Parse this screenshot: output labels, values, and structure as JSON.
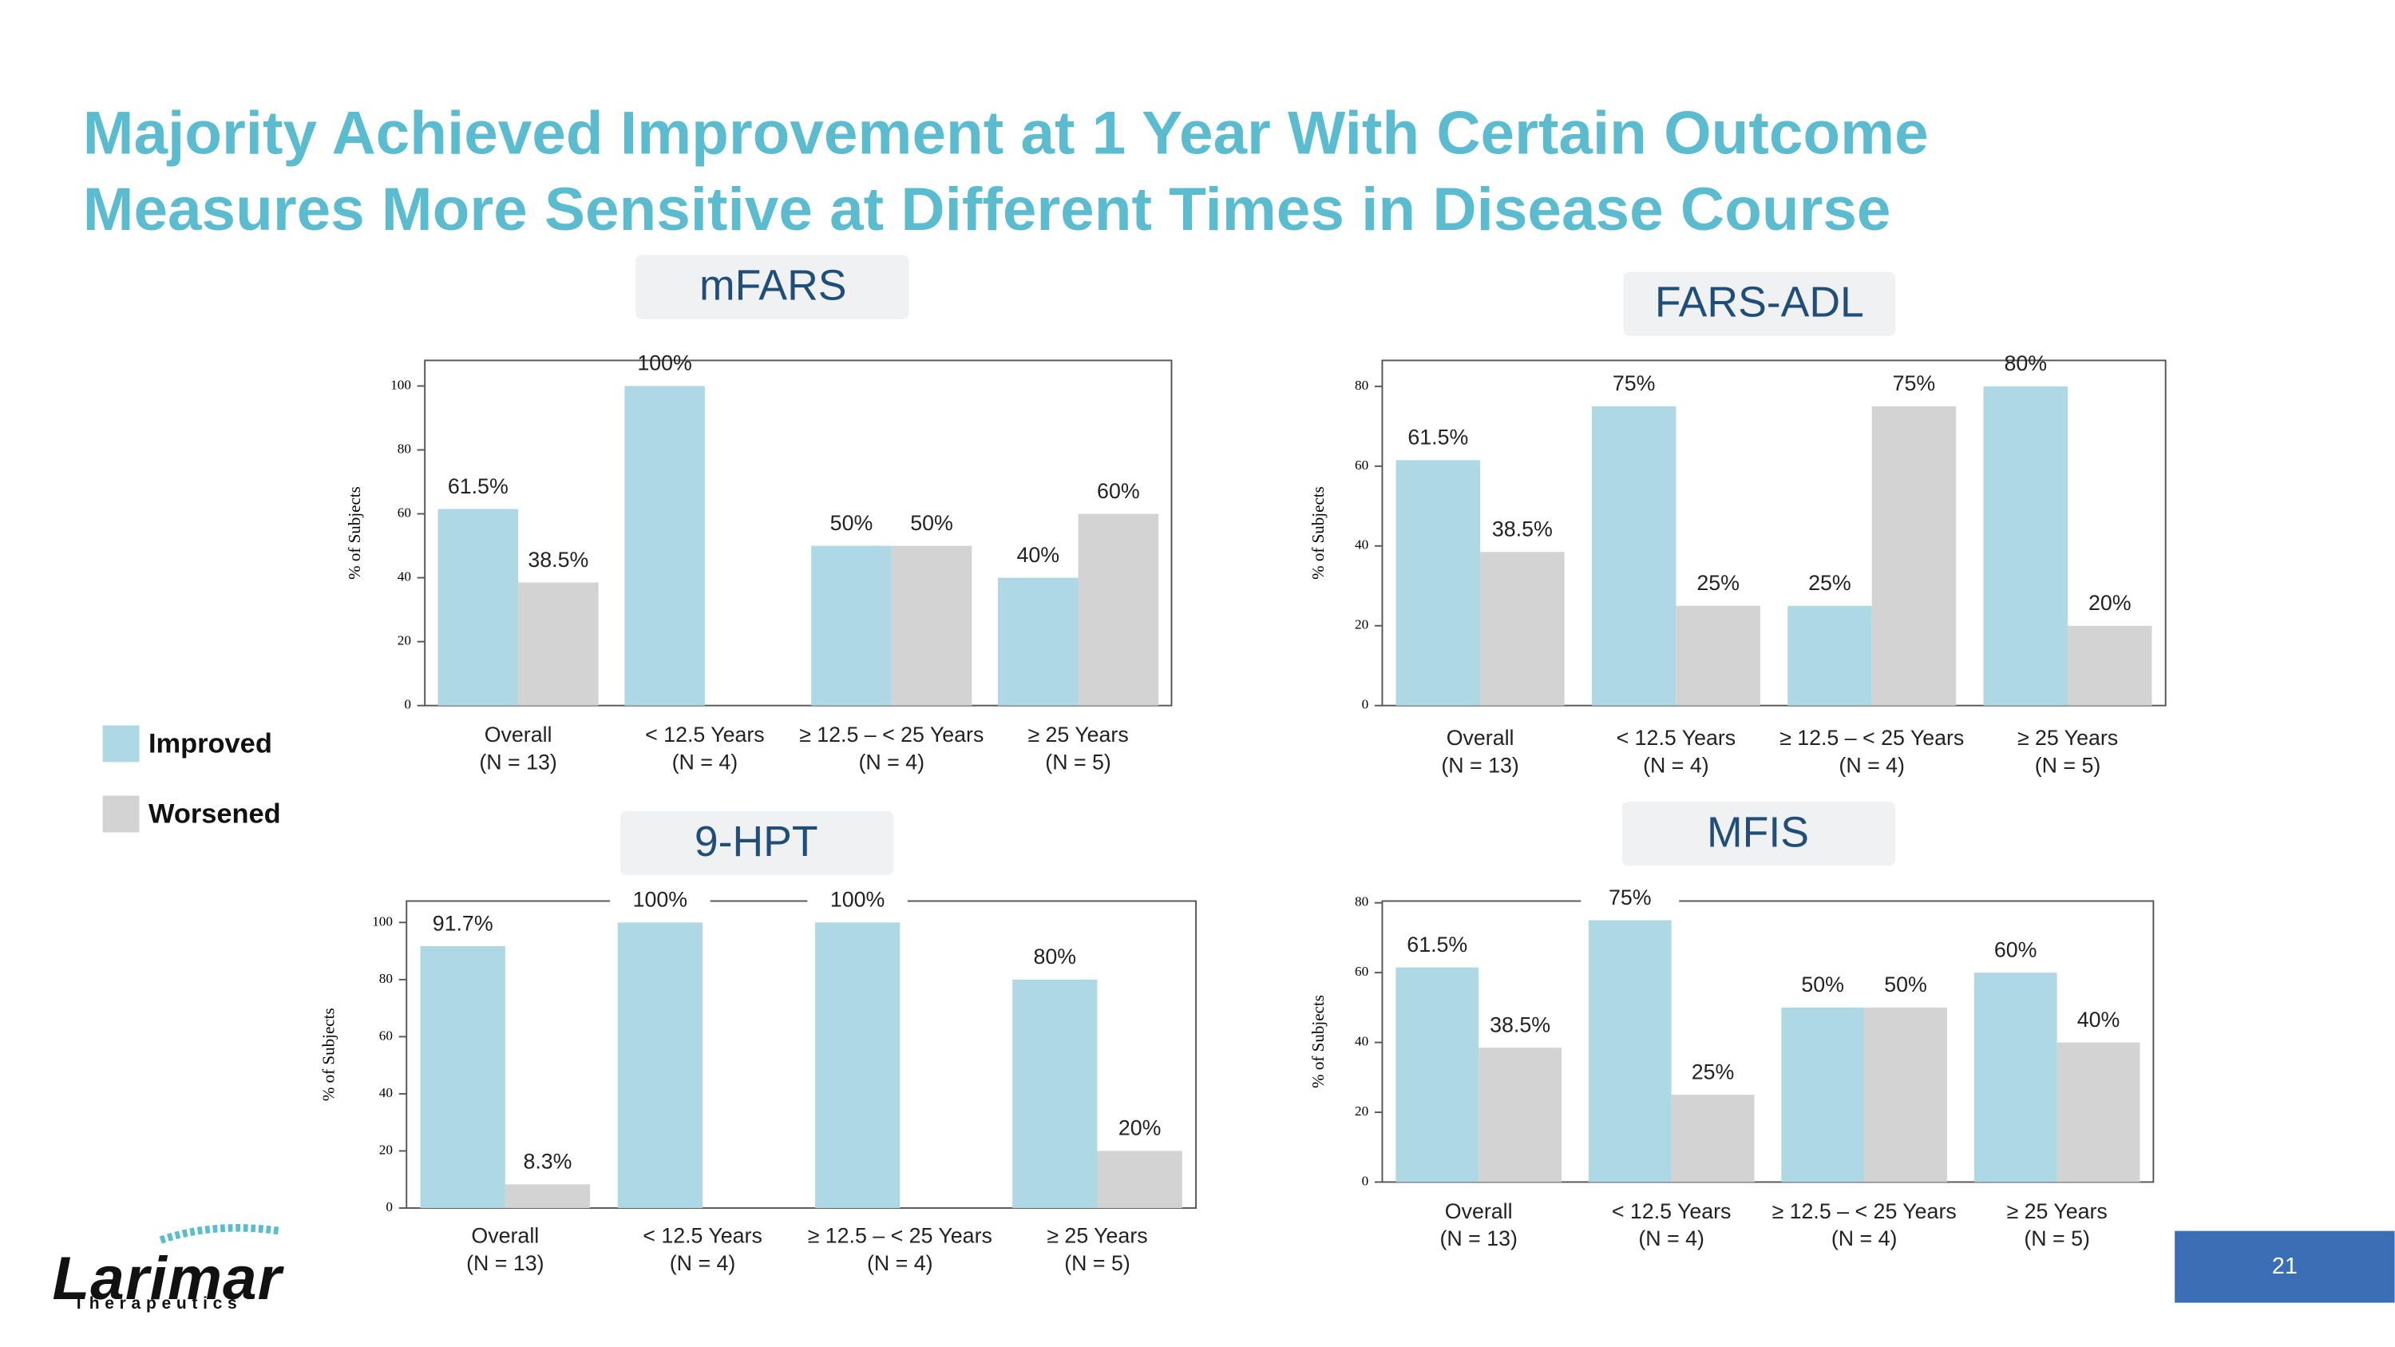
{
  "title_lines": [
    "Majority Achieved Improvement at 1 Year With Certain Outcome",
    "Measures More Sensitive at Different Times in Disease Course"
  ],
  "logo": {
    "name": "Larimar",
    "tagline": "Therapeutics"
  },
  "page_number": "21",
  "chart_data": [
    {
      "type": "bar",
      "title": "mFARS",
      "y_label": "% of Subjects",
      "categories": [
        "Overall",
        "< 12.5 Years",
        "≥ 12.5 – < 25 Years",
        "≥ 25 Years"
      ],
      "category_sublabels": [
        "(N = 13)",
        "(N = 4)",
        "(N = 4)",
        "(N = 5)"
      ],
      "series": [
        {
          "name": "Improved",
          "color": "#aed8e4",
          "values": [
            61.5,
            100,
            50,
            40
          ],
          "value_labels": [
            "61.5%",
            "100%",
            "50%",
            "40%"
          ]
        },
        {
          "name": "Worsened",
          "color": "#d3d3d3",
          "values": [
            38.5,
            0,
            50,
            60
          ],
          "value_labels": [
            "38.5%",
            null,
            "50%",
            "60%"
          ]
        }
      ],
      "ylim": [
        0,
        108
      ],
      "yticks": [
        0,
        20,
        40,
        60,
        80,
        100
      ]
    },
    {
      "type": "bar",
      "title": "FARS-ADL",
      "y_label": "% of Subjects",
      "categories": [
        "Overall",
        "< 12.5 Years",
        "≥ 12.5 – < 25 Years",
        "≥ 25 Years"
      ],
      "category_sublabels": [
        "(N = 13)",
        "(N = 4)",
        "(N = 4)",
        "(N = 5)"
      ],
      "series": [
        {
          "name": "Improved",
          "color": "#aed8e4",
          "values": [
            61.5,
            75,
            25,
            80
          ],
          "value_labels": [
            "61.5%",
            "75%",
            "25%",
            "80%"
          ]
        },
        {
          "name": "Worsened",
          "color": "#d3d3d3",
          "values": [
            38.5,
            25,
            75,
            20
          ],
          "value_labels": [
            "38.5%",
            "25%",
            "75%",
            "20%"
          ]
        }
      ],
      "ylim": [
        0,
        86.5
      ],
      "yticks": [
        0,
        20,
        40,
        60,
        80
      ]
    },
    {
      "type": "bar",
      "title": "9-HPT",
      "y_label": "% of Subjects",
      "categories": [
        "Overall",
        "< 12.5 Years",
        "≥ 12.5 – < 25 Years",
        "≥ 25 Years"
      ],
      "category_sublabels": [
        "(N = 13)",
        "(N = 4)",
        "(N = 4)",
        "(N = 5)"
      ],
      "series": [
        {
          "name": "Improved",
          "color": "#aed8e4",
          "values": [
            91.7,
            100,
            100,
            80
          ],
          "value_labels": [
            "91.7%",
            "100%",
            "100%",
            "80%"
          ]
        },
        {
          "name": "Worsened",
          "color": "#d3d3d3",
          "values": [
            8.3,
            0,
            0,
            20
          ],
          "value_labels": [
            "8.3%",
            null,
            null,
            "20%"
          ]
        }
      ],
      "ylim": [
        0,
        107.5
      ],
      "yticks": [
        0,
        20,
        40,
        60,
        80,
        100
      ]
    },
    {
      "type": "bar",
      "title": "MFIS",
      "y_label": "% of Subjects",
      "categories": [
        "Overall",
        "< 12.5 Years",
        "≥ 12.5 – < 25 Years",
        "≥ 25 Years"
      ],
      "category_sublabels": [
        "(N = 13)",
        "(N = 4)",
        "(N = 4)",
        "(N = 5)"
      ],
      "series": [
        {
          "name": "Improved",
          "color": "#aed8e4",
          "values": [
            61.5,
            75,
            50,
            60
          ],
          "value_labels": [
            "61.5%",
            "75%",
            "50%",
            "60%"
          ]
        },
        {
          "name": "Worsened",
          "color": "#d3d3d3",
          "values": [
            38.5,
            25,
            50,
            40
          ],
          "value_labels": [
            "38.5%",
            "25%",
            "50%",
            "40%"
          ]
        }
      ],
      "ylim": [
        0,
        80.5
      ],
      "yticks": [
        0,
        20,
        40,
        60,
        80
      ]
    }
  ]
}
